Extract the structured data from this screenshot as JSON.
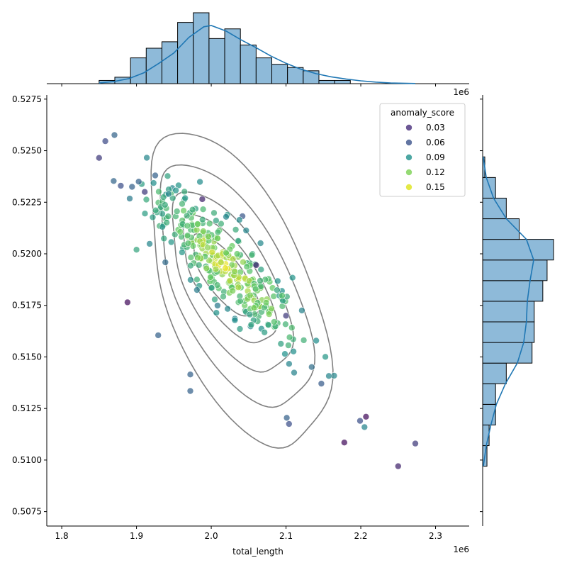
{
  "chart_data": {
    "type": "scatter",
    "subtype": "jointplot",
    "xlabel": "total_length",
    "ylabel": "",
    "x_offset_label": "1e6",
    "top_offset_label": "1e6",
    "xlim": [
      1.78,
      2.345
    ],
    "ylim": [
      0.5068,
      0.5277
    ],
    "x_ticks": [
      1.8,
      1.9,
      2.0,
      2.1,
      2.2,
      2.3
    ],
    "x_tick_labels": [
      "1.8",
      "1.9",
      "2.0",
      "2.1",
      "2.2",
      "2.3"
    ],
    "y_ticks": [
      0.5075,
      0.51,
      0.5125,
      0.515,
      0.5175,
      0.52,
      0.5225,
      0.525,
      0.5275
    ],
    "y_tick_labels": [
      "0.5075",
      "0.5100",
      "0.5125",
      "0.5150",
      "0.5175",
      "0.5200",
      "0.5225",
      "0.5250",
      "0.5275"
    ],
    "grid": false,
    "hue": "anomaly_score",
    "legend": {
      "title": "anomaly_score",
      "position": "top-right",
      "entries": [
        {
          "label": "0.03",
          "color": "#472d7b"
        },
        {
          "label": "0.06",
          "color": "#3b528b"
        },
        {
          "label": "0.09",
          "color": "#21918c"
        },
        {
          "label": "0.12",
          "color": "#7ad151"
        },
        {
          "label": "0.15",
          "color": "#dde318"
        }
      ]
    },
    "outlier_points": [
      {
        "x": 1.85,
        "y": 0.52465,
        "score": 0.04
      },
      {
        "x": 1.879,
        "y": 0.5233,
        "score": 0.05
      },
      {
        "x": 1.894,
        "y": 0.52325,
        "score": 0.06
      },
      {
        "x": 1.903,
        "y": 0.5235,
        "score": 0.06
      },
      {
        "x": 1.888,
        "y": 0.51765,
        "score": 0.02
      },
      {
        "x": 1.929,
        "y": 0.51605,
        "score": 0.06
      },
      {
        "x": 1.972,
        "y": 0.51415,
        "score": 0.06
      },
      {
        "x": 1.972,
        "y": 0.51335,
        "score": 0.06
      },
      {
        "x": 2.25,
        "y": 0.5097,
        "score": 0.03
      },
      {
        "x": 2.273,
        "y": 0.5108,
        "score": 0.04
      },
      {
        "x": 2.207,
        "y": 0.5121,
        "score": 0.02
      },
      {
        "x": 2.205,
        "y": 0.5116,
        "score": 0.08
      },
      {
        "x": 2.178,
        "y": 0.51085,
        "score": 0.02
      },
      {
        "x": 2.199,
        "y": 0.5119,
        "score": 0.05
      },
      {
        "x": 2.1,
        "y": 0.517,
        "score": 0.04
      },
      {
        "x": 2.06,
        "y": 0.51945,
        "score": 0.03
      },
      {
        "x": 2.104,
        "y": 0.51175,
        "score": 0.05
      },
      {
        "x": 2.101,
        "y": 0.51205,
        "score": 0.06
      },
      {
        "x": 1.925,
        "y": 0.5238,
        "score": 0.06
      },
      {
        "x": 1.911,
        "y": 0.523,
        "score": 0.04
      },
      {
        "x": 1.943,
        "y": 0.5229,
        "score": 0.08
      },
      {
        "x": 1.965,
        "y": 0.5227,
        "score": 0.09
      },
      {
        "x": 1.988,
        "y": 0.52265,
        "score": 0.03
      },
      {
        "x": 1.9,
        "y": 0.5202,
        "score": 0.1
      }
    ],
    "cluster": {
      "count": 330,
      "mean": [
        2.02,
        0.51945
      ],
      "sd_major_x": 0.052,
      "slope": -0.0318,
      "sd_minor_y": 0.00048,
      "score_peak": 0.15
    },
    "kde_contours": [
      {
        "center": [
          2.035,
          0.51815
        ],
        "sdx": 0.06,
        "sdy": 0.0034,
        "slope": -0.0335
      },
      {
        "center": [
          2.03,
          0.51835
        ],
        "sdx": 0.051,
        "sdy": 0.0025,
        "slope": -0.0335
      },
      {
        "center": [
          2.025,
          0.51855
        ],
        "sdx": 0.04,
        "sdy": 0.0018,
        "slope": -0.0335
      },
      {
        "center": [
          2.022,
          0.5187
        ],
        "sdx": 0.031,
        "sdy": 0.0012,
        "slope": -0.0335
      },
      {
        "center": [
          2.018,
          0.5189
        ],
        "sdx": 0.022,
        "sdy": 0.0007,
        "slope": -0.0335
      }
    ],
    "x_histogram": {
      "bin_edges": [
        1.85,
        1.871,
        1.892,
        1.913,
        1.934,
        1.955,
        1.976,
        1.997,
        2.018,
        2.039,
        2.06,
        2.081,
        2.102,
        2.123,
        2.144,
        2.165,
        2.186
      ],
      "counts": [
        1,
        2,
        8,
        11,
        13,
        19,
        22,
        14,
        17,
        12,
        8,
        6,
        5,
        4,
        1,
        1
      ],
      "kde": {
        "x": [
          1.85,
          1.87,
          1.89,
          1.91,
          1.93,
          1.95,
          1.97,
          1.99,
          2.0,
          2.02,
          2.04,
          2.06,
          2.08,
          2.1,
          2.12,
          2.14,
          2.16,
          2.18,
          2.2,
          2.22,
          2.24,
          2.273
        ],
        "y": [
          0.2,
          0.7,
          1.6,
          3.5,
          6.5,
          9.8,
          14.8,
          18.2,
          18.6,
          16.8,
          14.0,
          11.5,
          8.8,
          6.5,
          4.6,
          3.2,
          2.2,
          1.5,
          0.9,
          0.5,
          0.2,
          0.05
        ]
      }
    },
    "y_histogram": {
      "bin_edges": [
        0.5097,
        0.5107,
        0.5117,
        0.5127,
        0.5137,
        0.5147,
        0.5157,
        0.5167,
        0.5177,
        0.5187,
        0.5197,
        0.5207,
        0.5217,
        0.5227,
        0.5237,
        0.5247
      ],
      "counts": [
        2,
        3,
        6,
        6,
        11,
        23,
        24,
        24,
        28,
        30,
        33,
        17,
        11,
        6,
        1
      ],
      "kde": {
        "y": [
          0.5097,
          0.5107,
          0.5117,
          0.5127,
          0.5137,
          0.5147,
          0.5157,
          0.5167,
          0.5177,
          0.5187,
          0.5197,
          0.5207,
          0.5217,
          0.5227,
          0.5237,
          0.5247
        ],
        "x": [
          0.4,
          2.0,
          4.5,
          7.5,
          12.5,
          19.0,
          22.5,
          24.0,
          24.5,
          26.0,
          28.0,
          24.0,
          13.0,
          6.0,
          2.0,
          0.3
        ]
      }
    }
  }
}
